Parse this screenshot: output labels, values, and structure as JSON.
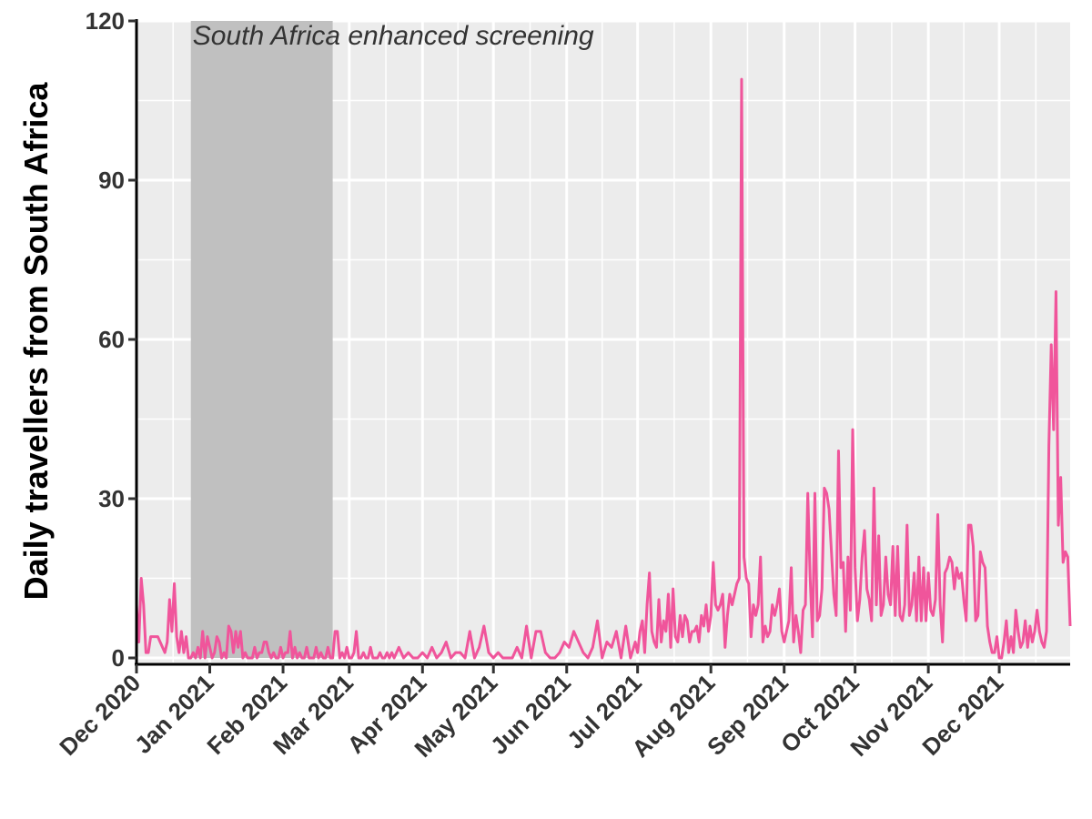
{
  "chart_data": {
    "type": "line",
    "title": "",
    "xlabel": "",
    "ylabel": "Daily travellers from South Africa",
    "ylim": [
      0,
      120
    ],
    "y_ticks": [
      0,
      30,
      60,
      90,
      120
    ],
    "y_tick_labels": [
      "0",
      "30",
      "60",
      "90",
      "120"
    ],
    "x_tick_dates": [
      "2020-12-01",
      "2021-01-01",
      "2021-02-01",
      "2021-03-01",
      "2021-04-01",
      "2021-05-01",
      "2021-06-01",
      "2021-07-01",
      "2021-08-01",
      "2021-09-01",
      "2021-10-01",
      "2021-11-01",
      "2021-12-01"
    ],
    "x_tick_labels": [
      "Dec 2020",
      "Jan 2021",
      "Feb 2021",
      "Mar 2021",
      "Apr 2021",
      "May 2021",
      "Jun 2021",
      "Jul 2021",
      "Aug 2021",
      "Sep 2021",
      "Oct 2021",
      "Nov 2021",
      "Dec 2021"
    ],
    "x_start": "2020-12-01",
    "x_end": "2021-12-31",
    "grid": true,
    "shaded_period": {
      "label": "South Africa enhanced screening",
      "start": "2020-12-24",
      "end": "2021-02-22",
      "color": "#c0c0c0"
    },
    "series": [
      {
        "color": "#f0559b",
        "x": [
          "2020-12-01",
          "2020-12-02",
          "2020-12-03",
          "2020-12-04",
          "2020-12-05",
          "2020-12-06",
          "2020-12-07",
          "2020-12-10",
          "2020-12-13",
          "2020-12-14",
          "2020-12-15",
          "2020-12-16",
          "2020-12-17",
          "2020-12-18",
          "2020-12-19",
          "2020-12-20",
          "2020-12-21",
          "2020-12-22",
          "2020-12-23",
          "2020-12-24",
          "2020-12-25",
          "2020-12-26",
          "2020-12-27",
          "2020-12-28",
          "2020-12-29",
          "2020-12-30",
          "2020-12-31",
          "2021-01-01",
          "2021-01-02",
          "2021-01-03",
          "2021-01-04",
          "2021-01-05",
          "2021-01-06",
          "2021-01-07",
          "2021-01-08",
          "2021-01-09",
          "2021-01-10",
          "2021-01-11",
          "2021-01-12",
          "2021-01-13",
          "2021-01-14",
          "2021-01-15",
          "2021-01-16",
          "2021-01-17",
          "2021-01-18",
          "2021-01-19",
          "2021-01-20",
          "2021-01-21",
          "2021-01-22",
          "2021-01-23",
          "2021-01-24",
          "2021-01-25",
          "2021-01-26",
          "2021-01-27",
          "2021-01-28",
          "2021-01-29",
          "2021-01-30",
          "2021-01-31",
          "2021-02-01",
          "2021-02-02",
          "2021-02-03",
          "2021-02-04",
          "2021-02-05",
          "2021-02-06",
          "2021-02-07",
          "2021-02-08",
          "2021-02-09",
          "2021-02-10",
          "2021-02-11",
          "2021-02-12",
          "2021-02-13",
          "2021-02-14",
          "2021-02-15",
          "2021-02-16",
          "2021-02-17",
          "2021-02-18",
          "2021-02-19",
          "2021-02-20",
          "2021-02-21",
          "2021-02-22",
          "2021-02-23",
          "2021-02-24",
          "2021-02-25",
          "2021-02-26",
          "2021-02-27",
          "2021-02-28",
          "2021-03-01",
          "2021-03-02",
          "2021-03-03",
          "2021-03-04",
          "2021-03-05",
          "2021-03-06",
          "2021-03-07",
          "2021-03-08",
          "2021-03-09",
          "2021-03-10",
          "2021-03-11",
          "2021-03-12",
          "2021-03-13",
          "2021-03-14",
          "2021-03-15",
          "2021-03-16",
          "2021-03-17",
          "2021-03-18",
          "2021-03-19",
          "2021-03-20",
          "2021-03-22",
          "2021-03-24",
          "2021-03-26",
          "2021-03-28",
          "2021-03-30",
          "2021-04-01",
          "2021-04-03",
          "2021-04-05",
          "2021-04-07",
          "2021-04-09",
          "2021-04-11",
          "2021-04-13",
          "2021-04-15",
          "2021-04-17",
          "2021-04-19",
          "2021-04-21",
          "2021-04-23",
          "2021-04-25",
          "2021-04-27",
          "2021-04-29",
          "2021-05-01",
          "2021-05-03",
          "2021-05-05",
          "2021-05-07",
          "2021-05-09",
          "2021-05-11",
          "2021-05-13",
          "2021-05-15",
          "2021-05-17",
          "2021-05-19",
          "2021-05-21",
          "2021-05-23",
          "2021-05-25",
          "2021-05-27",
          "2021-05-29",
          "2021-05-31",
          "2021-06-02",
          "2021-06-04",
          "2021-06-06",
          "2021-06-08",
          "2021-06-10",
          "2021-06-12",
          "2021-06-14",
          "2021-06-16",
          "2021-06-18",
          "2021-06-20",
          "2021-06-22",
          "2021-06-24",
          "2021-06-26",
          "2021-06-28",
          "2021-06-30",
          "2021-07-01",
          "2021-07-02",
          "2021-07-03",
          "2021-07-04",
          "2021-07-05",
          "2021-07-06",
          "2021-07-07",
          "2021-07-08",
          "2021-07-09",
          "2021-07-10",
          "2021-07-11",
          "2021-07-12",
          "2021-07-13",
          "2021-07-14",
          "2021-07-15",
          "2021-07-16",
          "2021-07-17",
          "2021-07-18",
          "2021-07-19",
          "2021-07-20",
          "2021-07-21",
          "2021-07-22",
          "2021-07-23",
          "2021-07-24",
          "2021-07-25",
          "2021-07-26",
          "2021-07-27",
          "2021-07-28",
          "2021-07-29",
          "2021-07-30",
          "2021-07-31",
          "2021-08-01",
          "2021-08-02",
          "2021-08-03",
          "2021-08-04",
          "2021-08-05",
          "2021-08-06",
          "2021-08-07",
          "2021-08-08",
          "2021-08-09",
          "2021-08-10",
          "2021-08-11",
          "2021-08-12",
          "2021-08-13",
          "2021-08-14",
          "2021-08-15",
          "2021-08-16",
          "2021-08-17",
          "2021-08-18",
          "2021-08-19",
          "2021-08-20",
          "2021-08-21",
          "2021-08-22",
          "2021-08-23",
          "2021-08-24",
          "2021-08-25",
          "2021-08-26",
          "2021-08-27",
          "2021-08-28",
          "2021-08-29",
          "2021-08-30",
          "2021-08-31",
          "2021-09-01",
          "2021-09-02",
          "2021-09-03",
          "2021-09-04",
          "2021-09-05",
          "2021-09-06",
          "2021-09-07",
          "2021-09-08",
          "2021-09-09",
          "2021-09-10",
          "2021-09-11",
          "2021-09-12",
          "2021-09-13",
          "2021-09-14",
          "2021-09-15",
          "2021-09-16",
          "2021-09-17",
          "2021-09-18",
          "2021-09-19",
          "2021-09-20",
          "2021-09-21",
          "2021-09-22",
          "2021-09-23",
          "2021-09-24",
          "2021-09-25",
          "2021-09-26",
          "2021-09-27",
          "2021-09-28",
          "2021-09-29",
          "2021-09-30",
          "2021-10-01",
          "2021-10-02",
          "2021-10-03",
          "2021-10-04",
          "2021-10-05",
          "2021-10-06",
          "2021-10-07",
          "2021-10-08",
          "2021-10-09",
          "2021-10-10",
          "2021-10-11",
          "2021-10-12",
          "2021-10-13",
          "2021-10-14",
          "2021-10-15",
          "2021-10-16",
          "2021-10-17",
          "2021-10-18",
          "2021-10-19",
          "2021-10-20",
          "2021-10-21",
          "2021-10-22",
          "2021-10-23",
          "2021-10-24",
          "2021-10-25",
          "2021-10-26",
          "2021-10-27",
          "2021-10-28",
          "2021-10-29",
          "2021-10-30",
          "2021-10-31",
          "2021-11-01",
          "2021-11-02",
          "2021-11-03",
          "2021-11-04",
          "2021-11-05",
          "2021-11-06",
          "2021-11-07",
          "2021-11-08",
          "2021-11-09",
          "2021-11-10",
          "2021-11-11",
          "2021-11-12",
          "2021-11-13",
          "2021-11-14",
          "2021-11-15",
          "2021-11-16",
          "2021-11-17",
          "2021-11-18",
          "2021-11-19",
          "2021-11-20",
          "2021-11-21",
          "2021-11-22",
          "2021-11-23",
          "2021-11-24",
          "2021-11-25",
          "2021-11-26",
          "2021-11-27",
          "2021-11-28",
          "2021-11-29",
          "2021-11-30",
          "2021-12-01",
          "2021-12-02",
          "2021-12-03",
          "2021-12-04",
          "2021-12-05",
          "2021-12-06",
          "2021-12-07",
          "2021-12-08",
          "2021-12-09",
          "2021-12-10",
          "2021-12-11",
          "2021-12-12",
          "2021-12-13",
          "2021-12-14",
          "2021-12-15",
          "2021-12-16",
          "2021-12-17",
          "2021-12-18",
          "2021-12-19",
          "2021-12-20",
          "2021-12-21",
          "2021-12-22",
          "2021-12-23",
          "2021-12-24",
          "2021-12-25",
          "2021-12-26",
          "2021-12-27",
          "2021-12-28",
          "2021-12-29",
          "2021-12-30",
          "2021-12-31"
        ],
        "values": [
          10,
          3,
          15,
          10,
          1,
          1,
          4,
          4,
          1,
          3,
          11,
          5,
          14,
          4,
          1,
          5,
          1,
          4,
          0,
          0,
          1,
          0,
          2,
          0,
          5,
          0,
          4,
          2,
          0,
          1,
          4,
          3,
          0,
          1,
          0,
          6,
          5,
          1,
          5,
          2,
          5,
          0,
          1,
          0,
          0,
          0,
          2,
          0,
          1,
          1,
          3,
          3,
          1,
          0,
          1,
          0,
          0,
          2,
          0,
          1,
          1,
          5,
          0,
          2,
          0,
          1,
          0,
          0,
          2,
          0,
          0,
          0,
          2,
          0,
          1,
          0,
          0,
          2,
          0,
          0,
          5,
          5,
          0,
          1,
          0,
          2,
          0,
          0,
          1,
          5,
          0,
          0,
          1,
          0,
          0,
          2,
          0,
          0,
          0,
          1,
          0,
          0,
          1,
          0,
          1,
          0,
          2,
          0,
          1,
          0,
          0,
          1,
          0,
          2,
          0,
          1,
          3,
          0,
          1,
          1,
          0,
          5,
          0,
          2,
          6,
          1,
          0,
          1,
          0,
          0,
          0,
          2,
          0,
          6,
          0,
          5,
          5,
          1,
          0,
          0,
          1,
          3,
          2,
          5,
          3,
          1,
          0,
          2,
          7,
          0,
          3,
          2,
          5,
          0,
          6,
          0,
          3,
          1,
          5,
          7,
          1,
          10,
          16,
          5,
          3,
          2,
          11,
          3,
          7,
          5,
          12,
          2,
          13,
          4,
          3,
          8,
          4,
          8,
          7,
          3,
          5,
          5,
          6,
          3,
          8,
          6,
          10,
          5,
          8,
          18,
          10,
          9,
          10,
          12,
          2,
          8,
          12,
          10,
          12,
          14,
          15,
          109,
          19,
          15,
          14,
          4,
          10,
          8,
          10,
          19,
          3,
          6,
          4,
          5,
          10,
          8,
          10,
          13,
          5,
          3,
          5,
          7,
          17,
          3,
          8,
          5,
          1,
          9,
          10,
          31,
          15,
          4,
          31,
          7,
          8,
          13,
          32,
          31,
          28,
          20,
          12,
          8,
          39,
          17,
          18,
          5,
          19,
          9,
          43,
          17,
          7,
          11,
          19,
          24,
          13,
          11,
          7,
          32,
          10,
          23,
          8,
          10,
          19,
          12,
          10,
          21,
          8,
          21,
          8,
          7,
          10,
          25,
          8,
          10,
          16,
          7,
          19,
          7,
          17,
          7,
          16,
          9,
          8,
          11,
          27,
          10,
          3,
          16,
          17,
          19,
          18,
          13,
          17,
          15,
          16,
          11,
          7,
          25,
          25,
          21,
          7,
          8,
          20,
          18,
          17,
          6,
          3,
          1,
          1,
          4,
          0,
          0,
          3,
          7,
          1,
          4,
          1,
          9,
          5,
          2,
          3,
          7,
          2,
          6,
          3,
          5,
          9,
          5,
          3,
          2,
          5,
          40,
          59,
          43,
          69,
          25,
          34,
          18,
          20,
          19,
          6
        ]
      }
    ]
  }
}
